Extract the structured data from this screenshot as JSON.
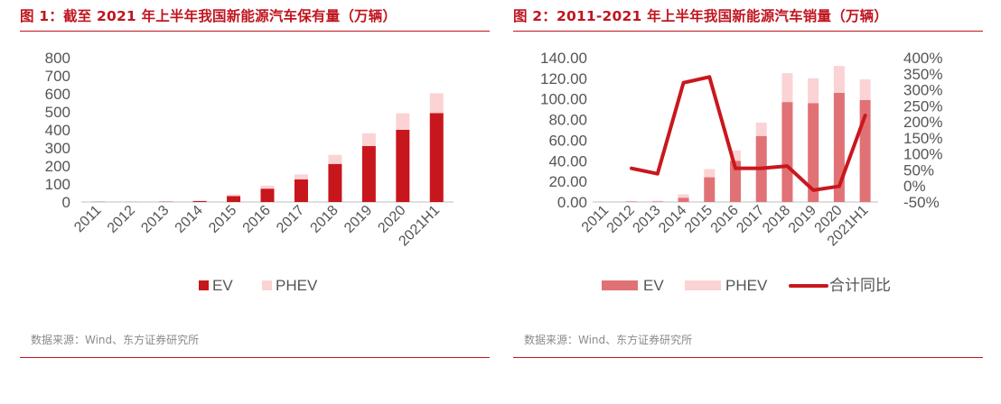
{
  "figures": [
    {
      "title": "图 1：截至 2021 年上半年我国新能源汽车保有量（万辆）",
      "source": "数据来源：Wind、东方证券研究所"
    },
    {
      "title": "图 2：2011-2021 年上半年我国新能源汽车销量（万辆）",
      "source": "数据来源：Wind、东方证券研究所"
    }
  ],
  "colors": {
    "ev_left": "#c8161d",
    "ev_right": "#e07276",
    "phev": "#fbd3d4",
    "line": "#c9171e",
    "title": "#c0151f",
    "axis_text": "#555555"
  },
  "chart_data": [
    {
      "type": "bar",
      "stacked": true,
      "categories": [
        "2011",
        "2012",
        "2013",
        "2014",
        "2015",
        "2016",
        "2017",
        "2018",
        "2019",
        "2020",
        "2021H1"
      ],
      "series": [
        {
          "name": "EV",
          "values": [
            1,
            1,
            2,
            5,
            33,
            74,
            125,
            211,
            310,
            400,
            493
          ]
        },
        {
          "name": "PHEV",
          "values": [
            0,
            1,
            1,
            3,
            9,
            17,
            28,
            50,
            71,
            92,
            110
          ]
        }
      ],
      "ylim": [
        0,
        800
      ],
      "yticks": [
        0,
        100,
        200,
        300,
        400,
        500,
        600,
        700,
        800
      ],
      "legend": "bottom"
    },
    {
      "type": "bar+line",
      "stacked": true,
      "categories": [
        "2011",
        "2012",
        "2013",
        "2014",
        "2015",
        "2016",
        "2017",
        "2018",
        "2019",
        "2020",
        "2021H1"
      ],
      "series": [
        {
          "name": "EV",
          "values": [
            0,
            0.5,
            0.6,
            4.2,
            24.0,
            40.0,
            64.0,
            97.0,
            96.0,
            106.0,
            99.0
          ]
        },
        {
          "name": "PHEV",
          "values": [
            0,
            0.5,
            0.6,
            3.2,
            8.0,
            10.0,
            13.0,
            28.0,
            24.0,
            26.0,
            20.0
          ]
        }
      ],
      "line_series": {
        "name": "合计同比",
        "axis": "right",
        "values": [
          null,
          55,
          38,
          322,
          340,
          55,
          55,
          62,
          -13,
          -1,
          220
        ]
      },
      "ylim": [
        0,
        140
      ],
      "yticks": [
        "0.00",
        "20.00",
        "40.00",
        "60.00",
        "80.00",
        "100.00",
        "120.00",
        "140.00"
      ],
      "y2lim": [
        -50,
        400
      ],
      "y2ticks": [
        "-50%",
        "0%",
        "50%",
        "100%",
        "150%",
        "200%",
        "250%",
        "300%",
        "350%",
        "400%"
      ],
      "legend": "bottom"
    }
  ]
}
